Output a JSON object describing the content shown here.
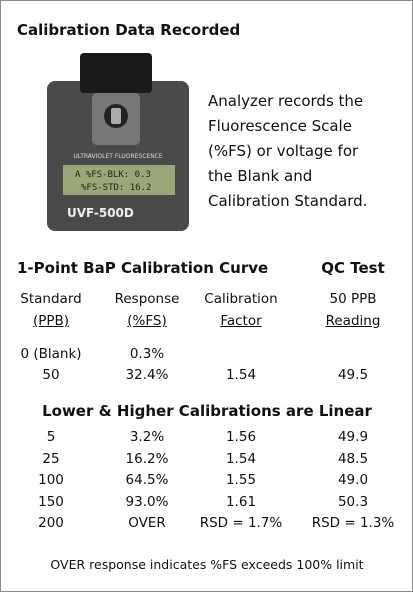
{
  "title": "Calibration Data Recorded",
  "device": {
    "band": "ULTRAVIOLET FLUORESCENCE",
    "display": [
      "A %FS-BLK: 0.3",
      "%FS-STD: 16.2"
    ],
    "model": "UVF-500D"
  },
  "description": [
    "Analyzer records the",
    "Fluorescence Scale",
    "(%FS) or voltage for",
    "the Blank and",
    "Calibration Standard."
  ],
  "section1": {
    "heading": "1-Point BaP Calibration Curve",
    "qc_heading": "QC Test",
    "columns": [
      [
        "Standard",
        "(PPB)"
      ],
      [
        "Response",
        "(%FS)"
      ],
      [
        "Calibration",
        "Factor"
      ],
      [
        "50 PPB",
        "Reading"
      ]
    ],
    "rows": [
      [
        "0 (Blank)",
        "0.3%"
      ],
      [
        "50",
        "32.4%",
        "1.54",
        "49.5"
      ]
    ]
  },
  "section2": {
    "heading": "Lower & Higher Calibrations are Linear",
    "rows": [
      [
        "5",
        "3.2%",
        "1.56",
        "49.9"
      ],
      [
        "25",
        "16.2%",
        "1.54",
        "48.5"
      ],
      [
        "100",
        "64.5%",
        "1.55",
        "49.0"
      ],
      [
        "150",
        "93.0%",
        "1.61",
        "50.3"
      ],
      [
        "200",
        "OVER",
        "RSD = 1.7%",
        "RSD = 1.3%"
      ]
    ]
  },
  "footnote": "OVER response indicates %FS exceeds 100% limit"
}
